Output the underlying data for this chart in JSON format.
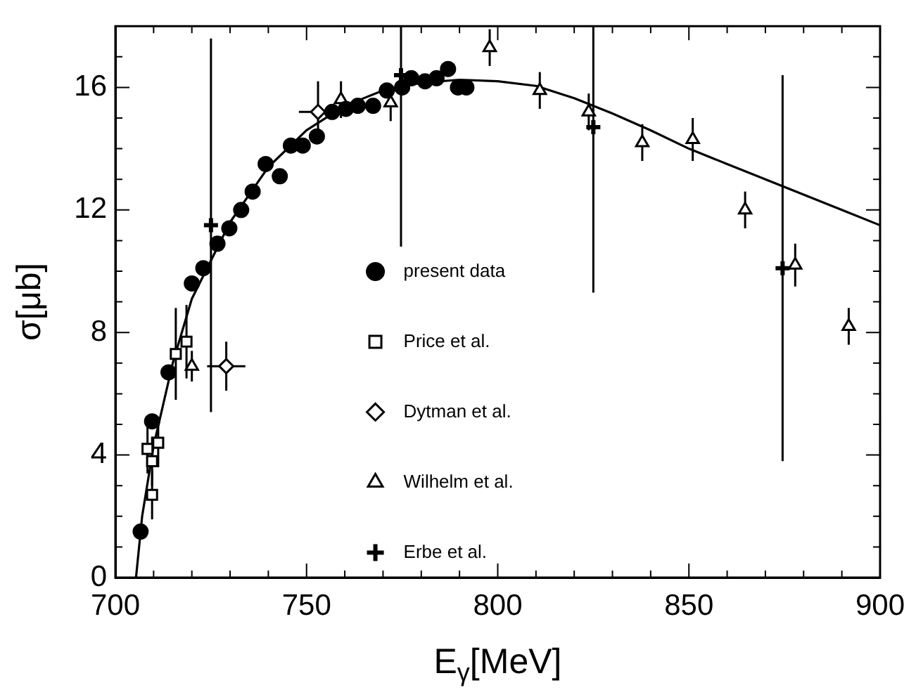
{
  "chart_data": {
    "type": "scatter",
    "xlabel": "E$_{γ}$[MeV]",
    "ylabel": "σ[μb]",
    "xlim": [
      700,
      900
    ],
    "ylim": [
      0,
      18
    ],
    "xticks": [
      700,
      {
        "value": 710,
        "label": null
      },
      {
        "value": 720,
        "label": null
      },
      {
        "value": 730,
        "label": null
      },
      {
        "value": 740,
        "label": null
      },
      750,
      {
        "value": 760,
        "label": null
      },
      {
        "value": 770,
        "label": null
      },
      {
        "value": 780,
        "label": null
      },
      {
        "value": 790,
        "label": null
      },
      800,
      {
        "value": 810,
        "label": null
      },
      {
        "value": 820,
        "label": null
      },
      {
        "value": 830,
        "label": null
      },
      {
        "value": 840,
        "label": null
      },
      850,
      {
        "value": 860,
        "label": null
      },
      {
        "value": 870,
        "label": null
      },
      {
        "value": 880,
        "label": null
      },
      {
        "value": 890,
        "label": null
      },
      900
    ],
    "yticks": [
      0,
      {
        "value": 1,
        "label": null
      },
      {
        "value": 2,
        "label": null
      },
      {
        "value": 3,
        "label": null
      },
      4,
      {
        "value": 5,
        "label": null
      },
      {
        "value": 6,
        "label": null
      },
      {
        "value": 7,
        "label": null
      },
      8,
      {
        "value": 9,
        "label": null
      },
      {
        "value": 10,
        "label": null
      },
      {
        "value": 11,
        "label": null
      },
      12,
      {
        "value": 13,
        "label": null
      },
      {
        "value": 14,
        "label": null
      },
      {
        "value": 15,
        "label": null
      },
      16,
      {
        "value": 17,
        "label": null
      }
    ],
    "grid": false,
    "legend": "center",
    "series": [
      {
        "name": "present data",
        "color": "#000000",
        "marker": "circle",
        "x": [
          706.6,
          709.6,
          713.9,
          720,
          723,
          726.7,
          729.8,
          732.9,
          735.9,
          739.3,
          743,
          745.9,
          749,
          752.7,
          756.7,
          760.3,
          763.4,
          767.4,
          771,
          775,
          777.4,
          781,
          784,
          787,
          789.6,
          791.8
        ],
        "values": [
          1.5,
          5.1,
          6.7,
          9.6,
          10.1,
          10.9,
          11.4,
          12.0,
          12.6,
          13.5,
          13.1,
          14.1,
          14.1,
          14.4,
          15.2,
          15.3,
          15.4,
          15.4,
          15.9,
          16.0,
          16.3,
          16.2,
          16.3,
          16.6,
          16.0,
          16.0
        ]
      },
      {
        "name": "Price et al.",
        "color": "#000000",
        "marker": "square",
        "x": [
          708.4,
          709.6,
          709.6,
          711.2,
          715.8,
          718.6
        ],
        "values": [
          4.2,
          3.8,
          2.7,
          4.4,
          7.3,
          7.7
        ],
        "errors": [
          0.8,
          0.8,
          0.8,
          0.8,
          1.5,
          1.2
        ]
      },
      {
        "name": "Dytman et al.",
        "color": "#000000",
        "marker": "diamond",
        "x": [
          729,
          753
        ],
        "values": [
          6.9,
          15.2
        ],
        "errors": [
          0.8,
          1.0
        ],
        "xerrors": [
          5,
          5
        ]
      },
      {
        "name": "Wilhelm et al.",
        "color": "#000000",
        "marker": "triangle",
        "x": [
          720,
          759,
          772,
          797.9,
          811,
          823.8,
          837.8,
          851,
          864.7,
          877.8,
          891.8
        ],
        "values": [
          6.9,
          15.6,
          15.5,
          17.3,
          15.9,
          15.2,
          14.2,
          14.3,
          12.0,
          10.2,
          8.2
        ],
        "errors": [
          0.5,
          0.6,
          0.6,
          0.6,
          0.6,
          0.6,
          0.6,
          0.7,
          0.6,
          0.7,
          0.6
        ]
      },
      {
        "name": "Erbe et al.",
        "color": "#000000",
        "marker": "cross",
        "x": [
          725,
          774.7,
          825,
          874.5
        ],
        "values": [
          11.5,
          16.4,
          14.7,
          10.1
        ],
        "errors": [
          [
            5.4,
            17.6
          ],
          [
            10.8,
            18
          ],
          [
            9.3,
            18
          ],
          [
            3.8,
            16.4
          ]
        ]
      },
      {
        "type": "line",
        "color": "#000000",
        "marker": "none",
        "line_style": "solid",
        "x": [
          705.4,
          707,
          710,
          715,
          720,
          730,
          740,
          750,
          760,
          770,
          780,
          790,
          800,
          810,
          820,
          830,
          840,
          850,
          860,
          870,
          880,
          890,
          900
        ],
        "values": [
          0,
          2,
          4.3,
          7,
          9.1,
          11.6,
          13.4,
          14.6,
          15.4,
          15.9,
          16.15,
          16.25,
          16.2,
          16.05,
          15.65,
          15.15,
          14.6,
          14.0,
          13.5,
          13.0,
          12.5,
          12.0,
          11.5
        ]
      }
    ]
  }
}
